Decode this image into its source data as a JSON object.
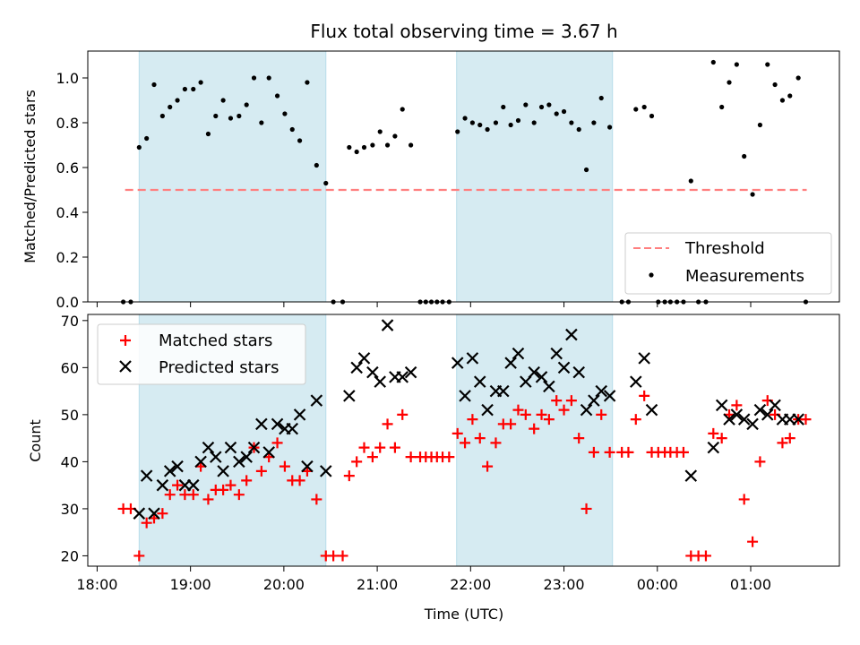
{
  "chart_data": [
    {
      "type": "scatter",
      "title": "Flux total observing time = 3.67 h",
      "ylabel": "Matched/Predicted stars",
      "xlabel": "",
      "ylim": [
        0,
        1.12
      ],
      "yticks": [
        "0.0",
        "0.2",
        "0.4",
        "0.6",
        "0.8",
        "1.0"
      ],
      "shaded_intervals_hours": [
        [
          18.45,
          20.45
        ],
        [
          21.85,
          23.52
        ]
      ],
      "threshold": {
        "name": "Threshold",
        "value": 0.5,
        "x_range_hours": [
          18.3,
          25.6
        ],
        "color": "#ff7f7f"
      },
      "series": [
        {
          "name": "Measurements",
          "color": "#000000",
          "points": [
            [
              18.28,
              0
            ],
            [
              18.36,
              0
            ],
            [
              18.45,
              0.69
            ],
            [
              18.53,
              0.73
            ],
            [
              18.61,
              0.97
            ],
            [
              18.7,
              0.83
            ],
            [
              18.78,
              0.87
            ],
            [
              18.86,
              0.9
            ],
            [
              18.94,
              0.95
            ],
            [
              19.03,
              0.95
            ],
            [
              19.11,
              0.98
            ],
            [
              19.19,
              0.75
            ],
            [
              19.27,
              0.83
            ],
            [
              19.35,
              0.9
            ],
            [
              19.43,
              0.82
            ],
            [
              19.52,
              0.83
            ],
            [
              19.6,
              0.88
            ],
            [
              19.68,
              1.0
            ],
            [
              19.76,
              0.8
            ],
            [
              19.84,
              1.0
            ],
            [
              19.93,
              0.92
            ],
            [
              20.01,
              0.84
            ],
            [
              20.09,
              0.77
            ],
            [
              20.17,
              0.72
            ],
            [
              20.25,
              0.98
            ],
            [
              20.35,
              0.61
            ],
            [
              20.45,
              0.53
            ],
            [
              20.53,
              0
            ],
            [
              20.63,
              0
            ],
            [
              20.7,
              0.69
            ],
            [
              20.78,
              0.67
            ],
            [
              20.86,
              0.69
            ],
            [
              20.95,
              0.7
            ],
            [
              21.03,
              0.76
            ],
            [
              21.11,
              0.7
            ],
            [
              21.19,
              0.74
            ],
            [
              21.27,
              0.86
            ],
            [
              21.36,
              0.7
            ],
            [
              21.46,
              0
            ],
            [
              21.52,
              0
            ],
            [
              21.58,
              0
            ],
            [
              21.64,
              0
            ],
            [
              21.7,
              0
            ],
            [
              21.77,
              0
            ],
            [
              21.86,
              0.76
            ],
            [
              21.94,
              0.82
            ],
            [
              22.02,
              0.8
            ],
            [
              22.1,
              0.79
            ],
            [
              22.18,
              0.77
            ],
            [
              22.27,
              0.8
            ],
            [
              22.35,
              0.87
            ],
            [
              22.43,
              0.79
            ],
            [
              22.51,
              0.81
            ],
            [
              22.59,
              0.88
            ],
            [
              22.68,
              0.8
            ],
            [
              22.76,
              0.87
            ],
            [
              22.84,
              0.88
            ],
            [
              22.92,
              0.84
            ],
            [
              23.0,
              0.85
            ],
            [
              23.08,
              0.8
            ],
            [
              23.16,
              0.77
            ],
            [
              23.24,
              0.59
            ],
            [
              23.32,
              0.8
            ],
            [
              23.4,
              0.91
            ],
            [
              23.49,
              0.78
            ],
            [
              23.62,
              0
            ],
            [
              23.69,
              0
            ],
            [
              23.77,
              0.86
            ],
            [
              23.86,
              0.87
            ],
            [
              23.94,
              0.83
            ],
            [
              24.01,
              0
            ],
            [
              24.08,
              0
            ],
            [
              24.14,
              0
            ],
            [
              24.21,
              0
            ],
            [
              24.28,
              0
            ],
            [
              24.36,
              0.54
            ],
            [
              24.44,
              0
            ],
            [
              24.52,
              0
            ],
            [
              24.6,
              1.07
            ],
            [
              24.69,
              0.87
            ],
            [
              24.77,
              0.98
            ],
            [
              24.85,
              1.06
            ],
            [
              24.93,
              0.65
            ],
            [
              25.02,
              0.48
            ],
            [
              25.1,
              0.79
            ],
            [
              25.18,
              1.06
            ],
            [
              25.26,
              0.97
            ],
            [
              25.34,
              0.9
            ],
            [
              25.42,
              0.92
            ],
            [
              25.51,
              1.0
            ],
            [
              25.59,
              0
            ]
          ]
        }
      ],
      "legend": {
        "position": "lower-right",
        "entries": [
          "Threshold",
          "Measurements"
        ]
      }
    },
    {
      "type": "scatter",
      "title": "",
      "xlabel": "Time (UTC)",
      "ylabel": "Count",
      "xlim_hours": [
        17.9,
        25.95
      ],
      "ylim": [
        17.8,
        71.3
      ],
      "xticks": [
        {
          "hour": 18,
          "label": "18:00"
        },
        {
          "hour": 19,
          "label": "19:00"
        },
        {
          "hour": 20,
          "label": "20:00"
        },
        {
          "hour": 21,
          "label": "21:00"
        },
        {
          "hour": 22,
          "label": "22:00"
        },
        {
          "hour": 23,
          "label": "23:00"
        },
        {
          "hour": 24,
          "label": "00:00"
        },
        {
          "hour": 25,
          "label": "01:00"
        }
      ],
      "yticks": [
        "20",
        "30",
        "40",
        "50",
        "60",
        "70"
      ],
      "shaded_intervals_hours": [
        [
          18.45,
          20.45
        ],
        [
          21.85,
          23.52
        ]
      ],
      "series": [
        {
          "name": "Matched stars",
          "marker": "+",
          "color": "#ff0000",
          "points": [
            [
              18.28,
              30
            ],
            [
              18.36,
              30
            ],
            [
              18.45,
              20
            ],
            [
              18.53,
              27
            ],
            [
              18.61,
              28
            ],
            [
              18.7,
              29
            ],
            [
              18.78,
              33
            ],
            [
              18.86,
              35
            ],
            [
              18.94,
              33
            ],
            [
              19.03,
              33
            ],
            [
              19.11,
              39
            ],
            [
              19.19,
              32
            ],
            [
              19.27,
              34
            ],
            [
              19.35,
              34
            ],
            [
              19.43,
              35
            ],
            [
              19.52,
              33
            ],
            [
              19.6,
              36
            ],
            [
              19.68,
              43
            ],
            [
              19.76,
              38
            ],
            [
              19.84,
              41
            ],
            [
              19.93,
              44
            ],
            [
              20.01,
              39
            ],
            [
              20.09,
              36
            ],
            [
              20.17,
              36
            ],
            [
              20.25,
              38
            ],
            [
              20.35,
              32
            ],
            [
              20.45,
              20
            ],
            [
              20.53,
              20
            ],
            [
              20.63,
              20
            ],
            [
              20.7,
              37
            ],
            [
              20.78,
              40
            ],
            [
              20.86,
              43
            ],
            [
              20.95,
              41
            ],
            [
              21.03,
              43
            ],
            [
              21.11,
              48
            ],
            [
              21.19,
              43
            ],
            [
              21.27,
              50
            ],
            [
              21.36,
              41
            ],
            [
              21.46,
              41
            ],
            [
              21.52,
              41
            ],
            [
              21.58,
              41
            ],
            [
              21.64,
              41
            ],
            [
              21.7,
              41
            ],
            [
              21.77,
              41
            ],
            [
              21.86,
              46
            ],
            [
              21.94,
              44
            ],
            [
              22.02,
              49
            ],
            [
              22.1,
              45
            ],
            [
              22.18,
              39
            ],
            [
              22.27,
              44
            ],
            [
              22.35,
              48
            ],
            [
              22.43,
              48
            ],
            [
              22.51,
              51
            ],
            [
              22.59,
              50
            ],
            [
              22.68,
              47
            ],
            [
              22.76,
              50
            ],
            [
              22.84,
              49
            ],
            [
              22.92,
              53
            ],
            [
              23.0,
              51
            ],
            [
              23.08,
              53
            ],
            [
              23.16,
              45
            ],
            [
              23.24,
              30
            ],
            [
              23.32,
              42
            ],
            [
              23.4,
              50
            ],
            [
              23.49,
              42
            ],
            [
              23.62,
              42
            ],
            [
              23.69,
              42
            ],
            [
              23.77,
              49
            ],
            [
              23.86,
              54
            ],
            [
              23.94,
              42
            ],
            [
              24.01,
              42
            ],
            [
              24.08,
              42
            ],
            [
              24.14,
              42
            ],
            [
              24.21,
              42
            ],
            [
              24.28,
              42
            ],
            [
              24.36,
              20
            ],
            [
              24.44,
              20
            ],
            [
              24.52,
              20
            ],
            [
              24.6,
              46
            ],
            [
              24.69,
              45
            ],
            [
              24.77,
              50
            ],
            [
              24.85,
              52
            ],
            [
              24.93,
              32
            ],
            [
              25.02,
              23
            ],
            [
              25.1,
              40
            ],
            [
              25.18,
              53
            ],
            [
              25.26,
              50
            ],
            [
              25.34,
              44
            ],
            [
              25.42,
              45
            ],
            [
              25.51,
              49
            ],
            [
              25.59,
              49
            ]
          ]
        },
        {
          "name": "Predicted stars",
          "marker": "x",
          "color": "#000000",
          "points": [
            [
              18.45,
              29
            ],
            [
              18.53,
              37
            ],
            [
              18.61,
              29
            ],
            [
              18.7,
              35
            ],
            [
              18.78,
              38
            ],
            [
              18.86,
              39
            ],
            [
              18.94,
              35
            ],
            [
              19.03,
              35
            ],
            [
              19.11,
              40
            ],
            [
              19.19,
              43
            ],
            [
              19.27,
              41
            ],
            [
              19.35,
              38
            ],
            [
              19.43,
              43
            ],
            [
              19.52,
              40
            ],
            [
              19.6,
              41
            ],
            [
              19.68,
              43
            ],
            [
              19.76,
              48
            ],
            [
              19.84,
              42
            ],
            [
              19.93,
              48
            ],
            [
              20.01,
              47
            ],
            [
              20.09,
              47
            ],
            [
              20.17,
              50
            ],
            [
              20.25,
              39
            ],
            [
              20.35,
              53
            ],
            [
              20.45,
              38
            ],
            [
              20.7,
              54
            ],
            [
              20.78,
              60
            ],
            [
              20.86,
              62
            ],
            [
              20.95,
              59
            ],
            [
              21.03,
              57
            ],
            [
              21.11,
              69
            ],
            [
              21.19,
              58
            ],
            [
              21.27,
              58
            ],
            [
              21.36,
              59
            ],
            [
              21.86,
              61
            ],
            [
              21.94,
              54
            ],
            [
              22.02,
              62
            ],
            [
              22.1,
              57
            ],
            [
              22.18,
              51
            ],
            [
              22.27,
              55
            ],
            [
              22.35,
              55
            ],
            [
              22.43,
              61
            ],
            [
              22.51,
              63
            ],
            [
              22.59,
              57
            ],
            [
              22.68,
              59
            ],
            [
              22.76,
              58
            ],
            [
              22.84,
              56
            ],
            [
              22.92,
              63
            ],
            [
              23.0,
              60
            ],
            [
              23.08,
              67
            ],
            [
              23.16,
              59
            ],
            [
              23.24,
              51
            ],
            [
              23.32,
              53
            ],
            [
              23.4,
              55
            ],
            [
              23.49,
              54
            ],
            [
              23.77,
              57
            ],
            [
              23.86,
              62
            ],
            [
              23.94,
              51
            ],
            [
              24.36,
              37
            ],
            [
              24.6,
              43
            ],
            [
              24.69,
              52
            ],
            [
              24.77,
              49
            ],
            [
              24.85,
              50
            ],
            [
              24.93,
              49
            ],
            [
              25.02,
              48
            ],
            [
              25.1,
              51
            ],
            [
              25.18,
              50
            ],
            [
              25.26,
              52
            ],
            [
              25.34,
              49
            ],
            [
              25.42,
              49
            ],
            [
              25.51,
              49
            ]
          ]
        }
      ],
      "legend": {
        "position": "top-left",
        "entries": [
          "Matched stars",
          "Predicted stars"
        ]
      }
    }
  ],
  "colors": {
    "shade": "#add8e6",
    "threshold": "#ff7f7f",
    "matched": "#ff0000",
    "predicted": "#000000"
  }
}
